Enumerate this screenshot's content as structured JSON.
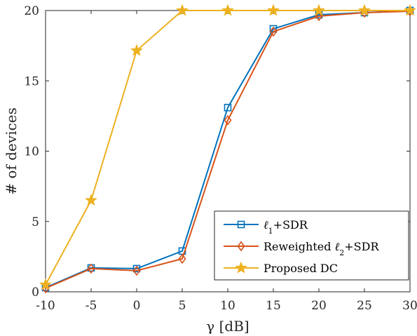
{
  "chart_data": {
    "type": "line",
    "xlabel": "γ [dB]",
    "ylabel": "# of devices",
    "xlim": [
      -10,
      30
    ],
    "ylim": [
      0,
      20
    ],
    "x": [
      -10,
      -5,
      0,
      5,
      10,
      15,
      20,
      25,
      30
    ],
    "x_tick_labels": [
      "-10",
      "-5",
      "0",
      "5",
      "10",
      "15",
      "20",
      "25",
      "30"
    ],
    "y_ticks": [
      0,
      5,
      10,
      15,
      20
    ],
    "y_tick_labels": [
      "0",
      "5",
      "10",
      "15",
      "20"
    ],
    "grid": false,
    "legend_position": "bottom-right",
    "series": [
      {
        "name": "ℓ1+SDR",
        "name_main": "ℓ",
        "name_sub": "1",
        "name_rest": "+SDR",
        "name_pre": "",
        "color": "#0072BD",
        "marker": "square",
        "values": [
          0.3,
          1.7,
          1.65,
          2.9,
          13.1,
          18.7,
          19.7,
          19.85,
          20.0
        ]
      },
      {
        "name": "Reweighted ℓ2+SDR",
        "name_pre": "Reweighted ",
        "name_main": "ℓ",
        "name_sub": "2",
        "name_rest": "+SDR",
        "color": "#D95319",
        "marker": "diamond",
        "values": [
          0.25,
          1.65,
          1.5,
          2.35,
          12.2,
          18.5,
          19.6,
          19.85,
          19.95
        ]
      },
      {
        "name": "Proposed DC",
        "name_pre": "Proposed DC",
        "name_main": "",
        "name_sub": "",
        "name_rest": "",
        "color": "#EDB120",
        "marker": "star",
        "values": [
          0.5,
          6.5,
          17.15,
          20.0,
          20.0,
          20.0,
          20.0,
          20.0,
          20.0
        ]
      }
    ]
  }
}
